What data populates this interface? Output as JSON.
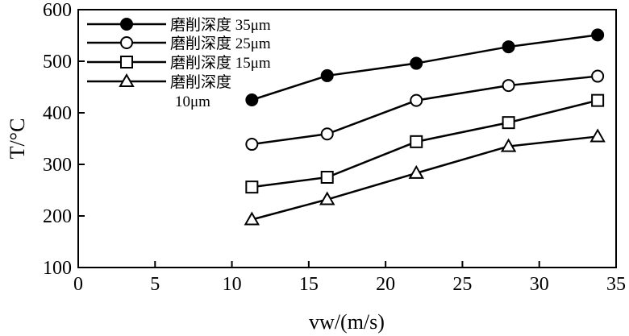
{
  "chart_data": {
    "type": "line",
    "xlabel": "vw/(m/s)",
    "ylabel": "T/°C",
    "xlim": [
      0,
      35
    ],
    "ylim": [
      100,
      600
    ],
    "xticks": [
      0,
      5,
      10,
      15,
      20,
      25,
      30,
      35
    ],
    "yticks": [
      100,
      200,
      300,
      400,
      500,
      600
    ],
    "grid": false,
    "legend_position": "top-left",
    "series": [
      {
        "name": "磨削深度 35μm",
        "marker": "filled-circle",
        "x": [
          11.3,
          16.2,
          22.0,
          28.0,
          33.8
        ],
        "y": [
          425,
          472,
          496,
          528,
          551
        ]
      },
      {
        "name": "磨削深度 25μm",
        "marker": "open-circle",
        "x": [
          11.3,
          16.2,
          22.0,
          28.0,
          33.8
        ],
        "y": [
          339,
          359,
          424,
          453,
          471
        ]
      },
      {
        "name": "磨削深度 15μm",
        "marker": "open-square",
        "x": [
          11.3,
          16.2,
          22.0,
          28.0,
          33.8
        ],
        "y": [
          256,
          275,
          344,
          381,
          424
        ]
      },
      {
        "name": "磨削深度 10μm",
        "marker": "open-triangle",
        "x": [
          11.3,
          16.2,
          22.0,
          28.0,
          33.8
        ],
        "y": [
          193,
          232,
          283,
          335,
          354
        ]
      }
    ]
  }
}
